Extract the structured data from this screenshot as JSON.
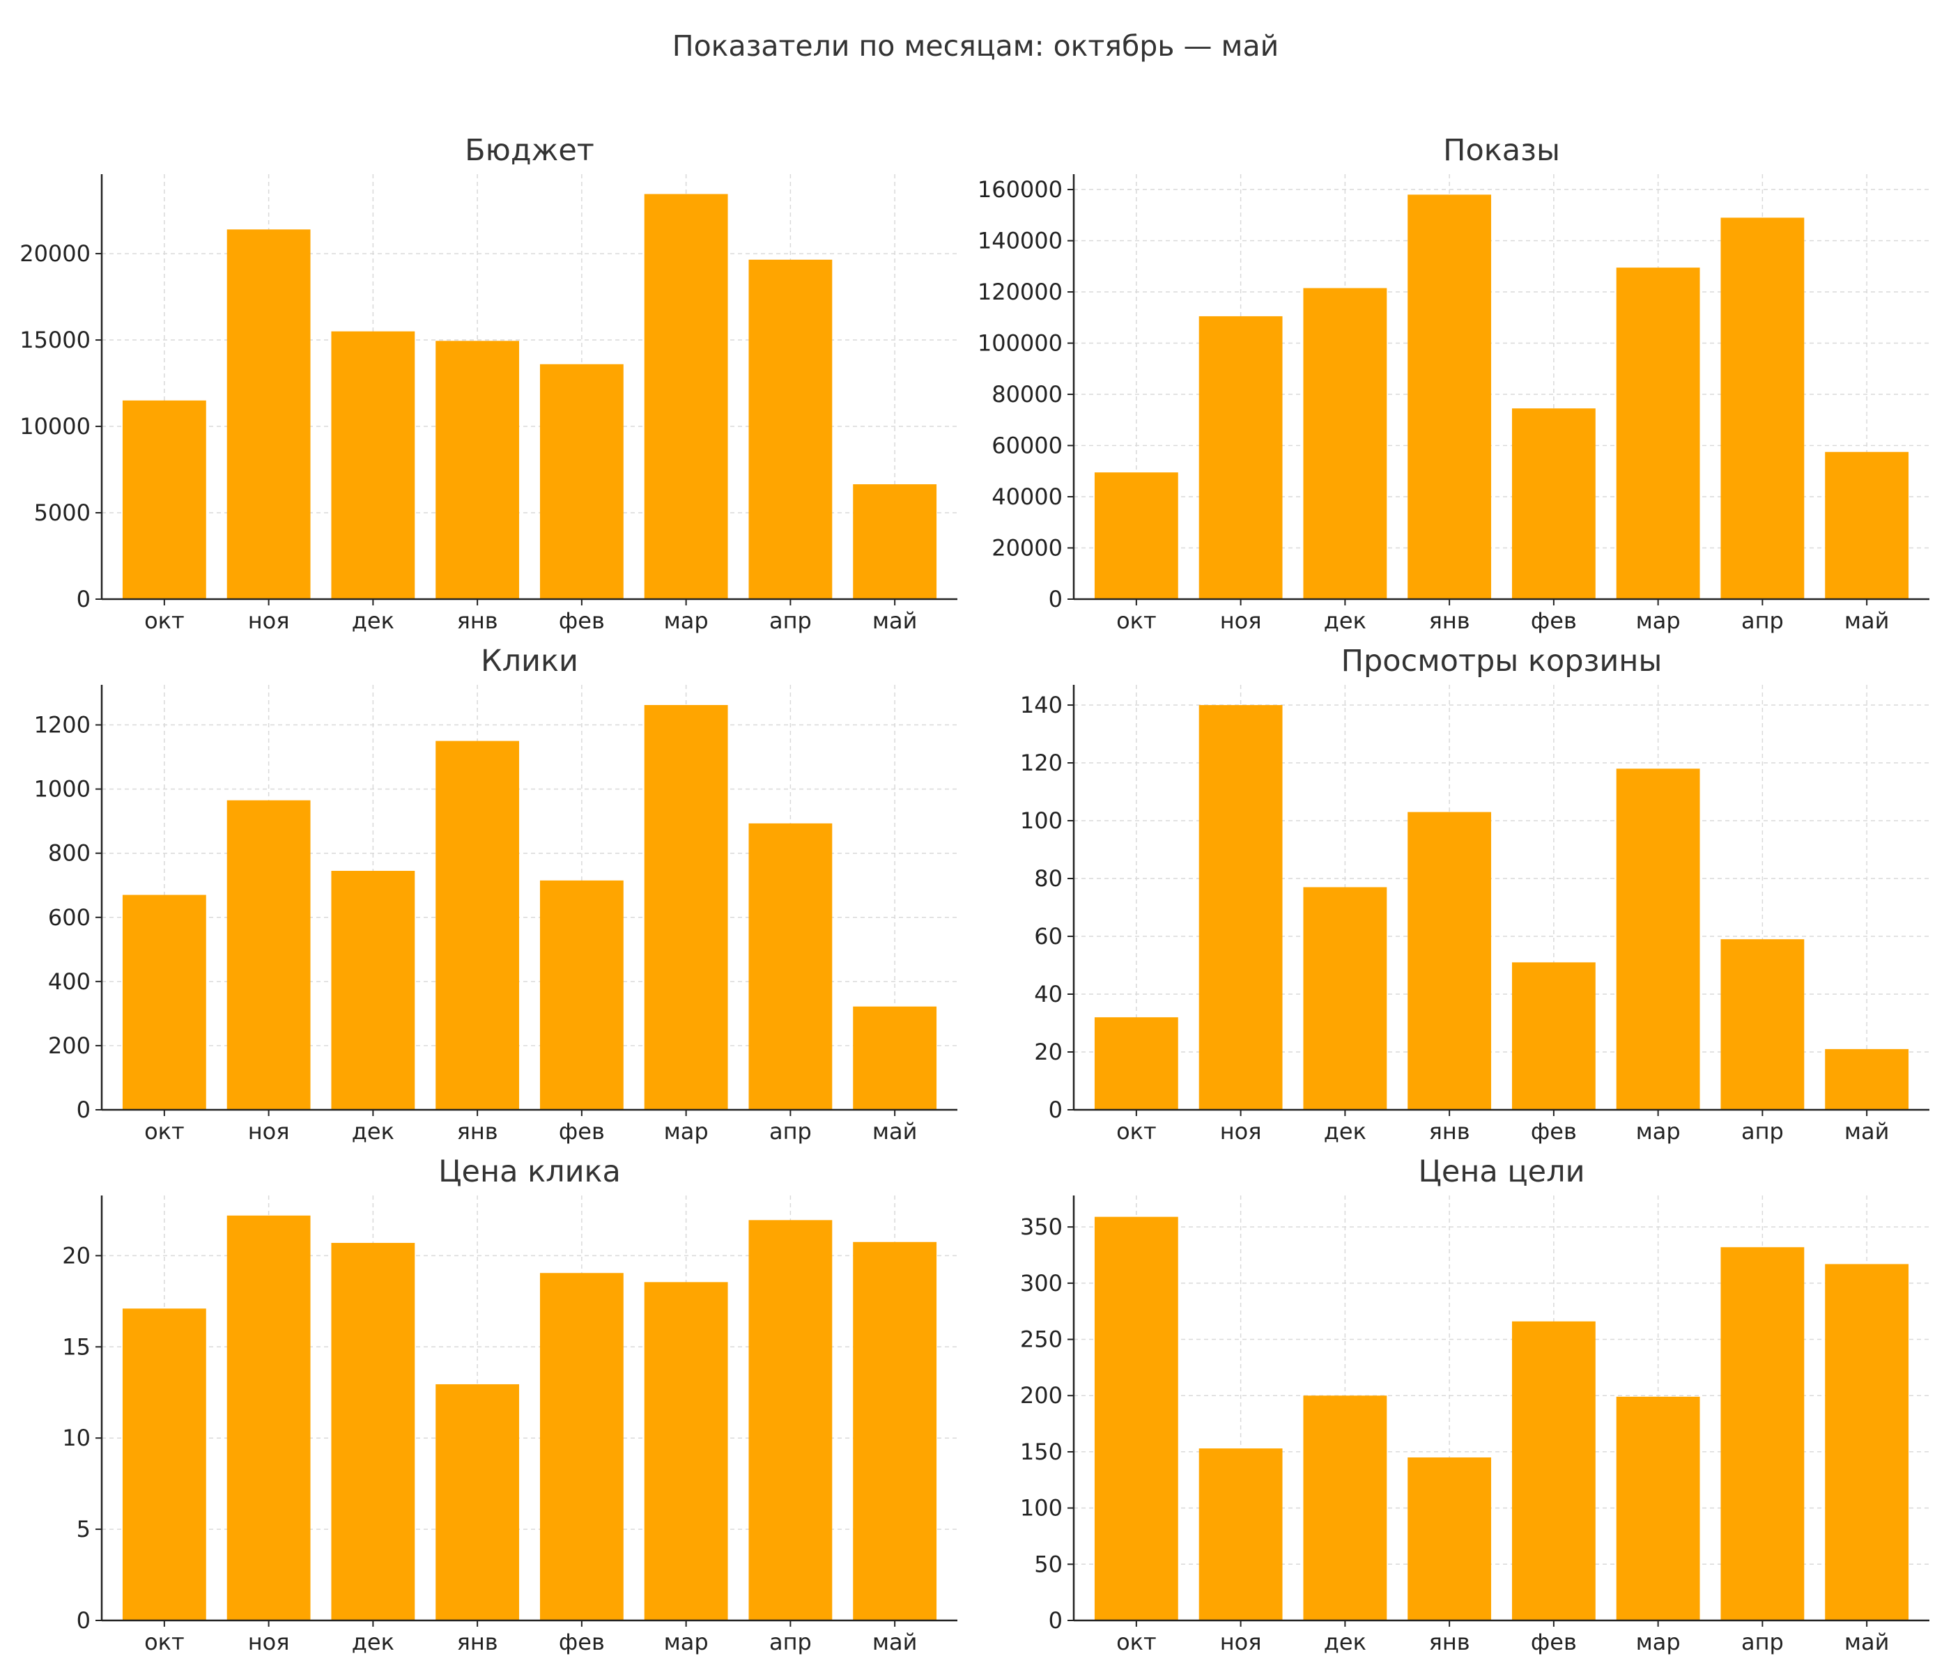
{
  "figure": {
    "suptitle": "Показатели по месяцам: октябрь — май",
    "bar_color": "#FFA500"
  },
  "chart_data": [
    {
      "type": "bar",
      "title": "Бюджет",
      "xlabel": "",
      "ylabel": "",
      "categories": [
        "окт",
        "ноя",
        "дек",
        "янв",
        "фев",
        "мар",
        "апр",
        "май"
      ],
      "values": [
        11500,
        21400,
        15500,
        14950,
        13600,
        23450,
        19650,
        6650
      ],
      "yticks": [
        0,
        5000,
        10000,
        15000,
        20000
      ],
      "ylim": [
        0,
        24600
      ],
      "grid": true
    },
    {
      "type": "bar",
      "title": "Показы",
      "xlabel": "",
      "ylabel": "",
      "categories": [
        "окт",
        "ноя",
        "дек",
        "янв",
        "фев",
        "мар",
        "апр",
        "май"
      ],
      "values": [
        49500,
        110500,
        121500,
        158000,
        74500,
        129500,
        149000,
        57500
      ],
      "yticks": [
        0,
        20000,
        40000,
        60000,
        80000,
        100000,
        120000,
        140000,
        160000
      ],
      "ylim": [
        0,
        166000
      ],
      "grid": true
    },
    {
      "type": "bar",
      "title": "Клики",
      "xlabel": "",
      "ylabel": "",
      "categories": [
        "окт",
        "ноя",
        "дек",
        "янв",
        "фев",
        "мар",
        "апр",
        "май"
      ],
      "values": [
        670,
        965,
        745,
        1150,
        715,
        1262,
        893,
        322
      ],
      "yticks": [
        0,
        200,
        400,
        600,
        800,
        1000,
        1200
      ],
      "ylim": [
        0,
        1325
      ],
      "grid": true
    },
    {
      "type": "bar",
      "title": "Просмотры корзины",
      "xlabel": "",
      "ylabel": "",
      "categories": [
        "окт",
        "ноя",
        "дек",
        "янв",
        "фев",
        "мар",
        "апр",
        "май"
      ],
      "values": [
        32,
        140,
        77,
        103,
        51,
        118,
        59,
        21
      ],
      "yticks": [
        0,
        20,
        40,
        60,
        80,
        100,
        120,
        140
      ],
      "ylim": [
        0,
        147
      ],
      "grid": true
    },
    {
      "type": "bar",
      "title": "Цена клика",
      "xlabel": "",
      "ylabel": "",
      "categories": [
        "окт",
        "ноя",
        "дек",
        "янв",
        "фев",
        "мар",
        "апр",
        "май"
      ],
      "values": [
        17.1,
        22.2,
        20.7,
        12.95,
        19.05,
        18.55,
        21.95,
        20.75
      ],
      "yticks": [
        0,
        5,
        10,
        15,
        20
      ],
      "ylim": [
        0,
        23.3
      ],
      "grid": true
    },
    {
      "type": "bar",
      "title": "Цена цели",
      "xlabel": "",
      "ylabel": "",
      "categories": [
        "окт",
        "ноя",
        "дек",
        "янв",
        "фев",
        "мар",
        "апр",
        "май"
      ],
      "values": [
        359,
        153,
        200,
        145,
        266,
        199,
        332,
        317
      ],
      "yticks": [
        0,
        50,
        100,
        150,
        200,
        250,
        300,
        350
      ],
      "ylim": [
        0,
        378
      ],
      "grid": true
    }
  ]
}
